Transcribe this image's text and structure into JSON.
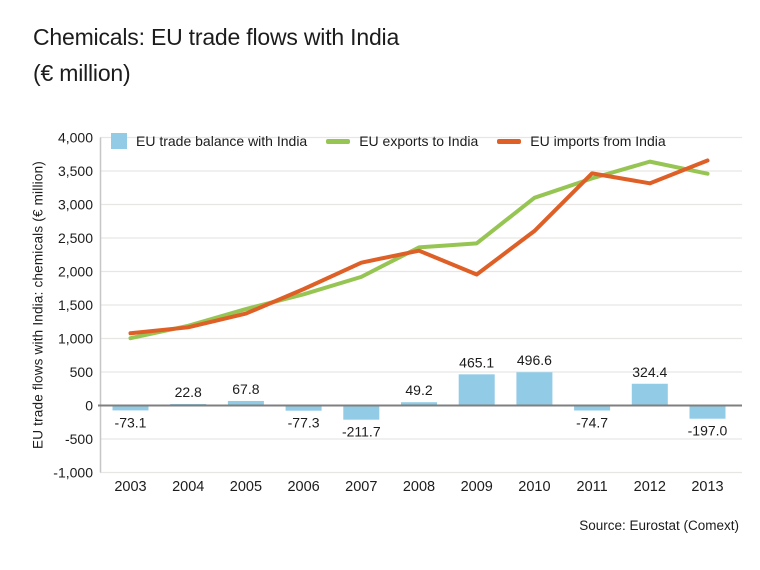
{
  "title": {
    "line1": "Chemicals: EU trade flows with India",
    "line2": "(€ million)"
  },
  "source": "Source: Eurostat (Comext)",
  "colors": {
    "balance_bar": "#92CBE6",
    "exports_line": "#97C554",
    "imports_line": "#DE6027",
    "zero_axis": "#7F7F7F",
    "gridline": "#E8E6E3",
    "axis_line": "#C6C6C6",
    "text": "#1C1C1C",
    "background": "#FFFFFF"
  },
  "chart_data": {
    "type": "bar",
    "subtype": "combo-bar-and-lines",
    "title": "Chemicals: EU trade flows with India (€ million)",
    "xlabel": "",
    "ylabel": "EU trade flows with India: chemicals (€ million)",
    "ylim": [
      -1000,
      4000
    ],
    "ytick_step": 500,
    "grid": "horizontal",
    "legend_position": "top-inside",
    "categories": [
      "2003",
      "2004",
      "2005",
      "2006",
      "2007",
      "2008",
      "2009",
      "2010",
      "2011",
      "2012",
      "2013"
    ],
    "yticks": [
      4000,
      3500,
      3000,
      2500,
      2000,
      1500,
      1000,
      500,
      0,
      -500,
      -1000
    ],
    "ytick_labels": [
      "4,000",
      "3,500",
      "3,000",
      "2,500",
      "2,000",
      "1,500",
      "1,000",
      "500",
      "0",
      "-500",
      "-1,000"
    ],
    "series": [
      {
        "name": "EU trade balance with India",
        "type": "bar",
        "color": "#92CBE6",
        "values": [
          -73.1,
          22.8,
          67.8,
          -77.3,
          -211.7,
          49.2,
          465.1,
          496.6,
          -74.7,
          324.4,
          -197.0
        ],
        "value_labels": [
          "-73.1",
          "22.8",
          "67.8",
          "-77.3",
          "-211.7",
          "49.2",
          "465.1",
          "496.6",
          "-74.7",
          "324.4",
          "-197.0"
        ]
      },
      {
        "name": "EU exports to India",
        "type": "line",
        "color": "#97C554",
        "values": [
          1005,
          1190,
          1440,
          1660,
          1920,
          2360,
          2420,
          3100,
          3390,
          3640,
          3460
        ]
      },
      {
        "name": "EU imports from India",
        "type": "line",
        "color": "#DE6027",
        "values": [
          1078,
          1167,
          1372,
          1737,
          2132,
          2311,
          1955,
          2604,
          3465,
          3316,
          3657
        ]
      }
    ]
  }
}
